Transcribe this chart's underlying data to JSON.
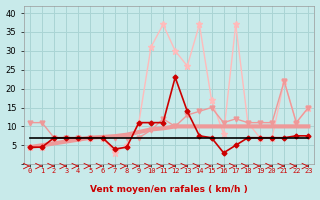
{
  "x": [
    0,
    1,
    2,
    3,
    4,
    5,
    6,
    7,
    8,
    9,
    10,
    11,
    12,
    13,
    14,
    15,
    16,
    17,
    18,
    19,
    20,
    21,
    22,
    23
  ],
  "line_gust_light": [
    4.5,
    4.5,
    7,
    7,
    7,
    7,
    7,
    3,
    5,
    11,
    31,
    37,
    30,
    26,
    37,
    17,
    8,
    37,
    11,
    7,
    7,
    22,
    11,
    15
  ],
  "line_avg_light": [
    11,
    11,
    7,
    7,
    7,
    7,
    7,
    7,
    7,
    7,
    9,
    12,
    10,
    13,
    14,
    15,
    11,
    12,
    11,
    11,
    11,
    22,
    11,
    15
  ],
  "line_trend": [
    4.5,
    5.0,
    5.5,
    6.0,
    6.5,
    7.0,
    7.2,
    7.4,
    7.8,
    8.5,
    9.2,
    9.5,
    10.0,
    10.0,
    10.0,
    10.0,
    10.0,
    10.0,
    10.0,
    10.0,
    10.0,
    10.0,
    10.0,
    10.0
  ],
  "line_mean_dark": [
    4.5,
    4.5,
    7,
    7,
    7,
    7,
    7,
    4,
    4.5,
    11,
    11,
    11,
    23,
    14,
    7.5,
    7,
    3,
    5,
    7,
    7,
    7,
    7,
    7.5,
    7.5
  ],
  "line_flat_black": [
    7,
    7,
    7,
    7,
    7,
    7,
    7,
    7,
    7,
    7,
    7,
    7,
    7,
    7,
    7,
    7,
    7,
    7,
    7,
    7,
    7,
    7,
    7,
    7
  ],
  "background": "#c8eaea",
  "grid_color": "#aad4d4",
  "color_dark_red": "#cc0000",
  "color_medium_red": "#dd4444",
  "color_light_pink": "#ee9999",
  "color_lightest_pink": "#ffbbbb",
  "color_black": "#000000",
  "xlabel": "Vent moyen/en rafales ( km/h )",
  "yticks": [
    0,
    5,
    10,
    15,
    20,
    25,
    30,
    35,
    40
  ],
  "ylim": [
    0,
    42
  ],
  "xlim": [
    -0.5,
    23.5
  ]
}
